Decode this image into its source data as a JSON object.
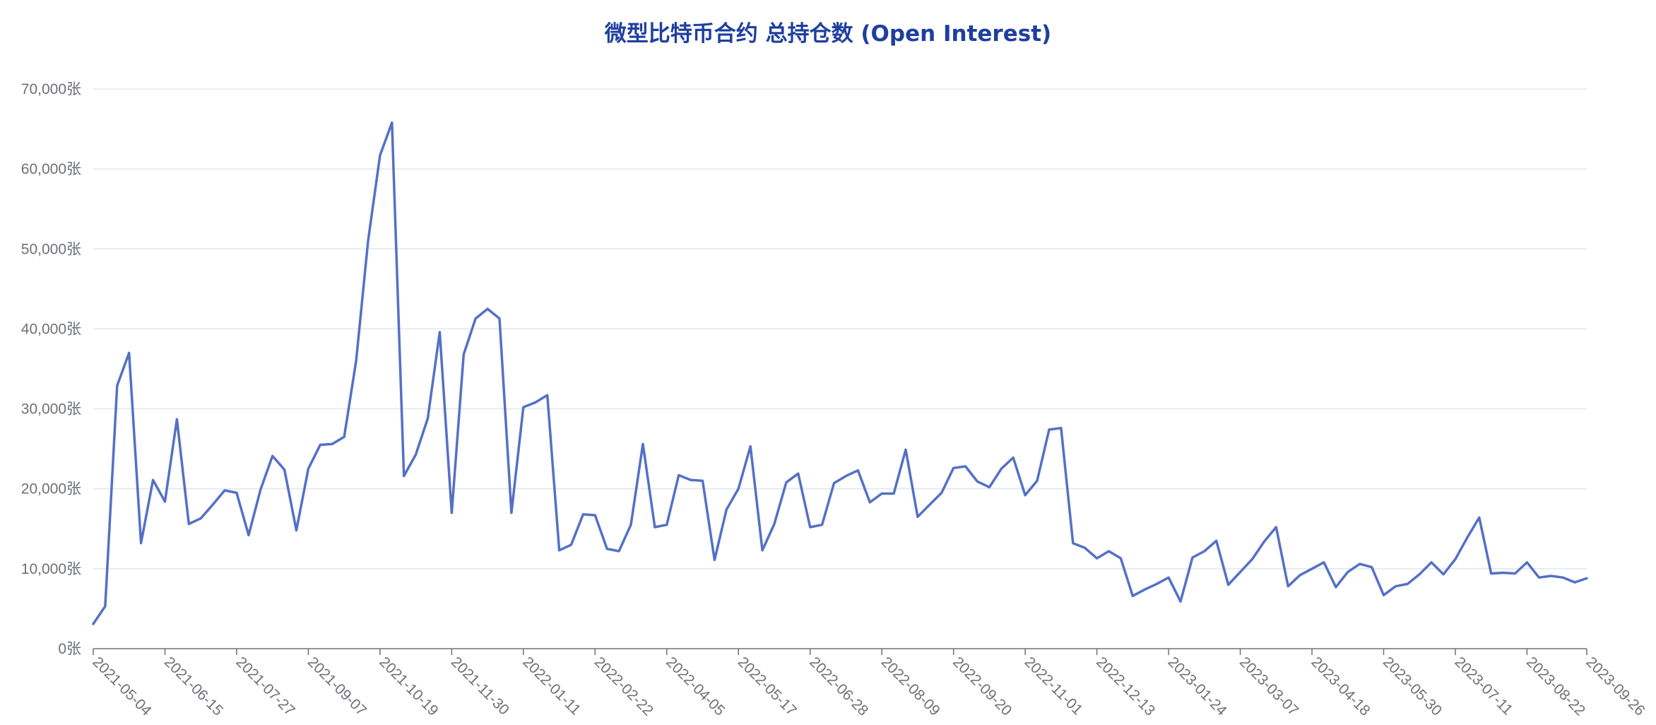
{
  "chart_data": {
    "type": "line",
    "title": "微型比特币合约 总持仓数 (Open Interest)",
    "xlabel": "",
    "ylabel": "",
    "ylim": [
      0,
      70000
    ],
    "grid": true,
    "legend": "none",
    "y_unit_suffix": "张",
    "y_ticks": [
      "0张",
      "10,000张",
      "20,000张",
      "30,000张",
      "40,000张",
      "50,000张",
      "60,000张",
      "70,000张"
    ],
    "x_ticks": [
      "2021-05-04",
      "2021-06-15",
      "2021-07-27",
      "2021-09-07",
      "2021-10-19",
      "2021-11-30",
      "2022-01-11",
      "2022-02-22",
      "2022-04-05",
      "2022-05-17",
      "2022-06-28",
      "2022-08-09",
      "2022-09-20",
      "2022-11-01",
      "2022-12-13",
      "2023-01-24",
      "2023-03-07",
      "2023-04-18",
      "2023-05-30",
      "2023-07-11",
      "2023-08-22",
      "2023-09-26"
    ],
    "series": [
      {
        "color": "#5470c6",
        "points": [
          [
            "2021-05-04",
            3100
          ],
          [
            "2021-05-11",
            5300
          ],
          [
            "2021-05-18",
            32900
          ],
          [
            "2021-05-25",
            37000
          ],
          [
            "2021-06-01",
            13200
          ],
          [
            "2021-06-08",
            21100
          ],
          [
            "2021-06-15",
            18400
          ],
          [
            "2021-06-22",
            28700
          ],
          [
            "2021-06-29",
            15600
          ],
          [
            "2021-07-06",
            16300
          ],
          [
            "2021-07-13",
            18000
          ],
          [
            "2021-07-20",
            19800
          ],
          [
            "2021-07-27",
            19500
          ],
          [
            "2021-08-03",
            14200
          ],
          [
            "2021-08-10",
            19900
          ],
          [
            "2021-08-17",
            24100
          ],
          [
            "2021-08-24",
            22400
          ],
          [
            "2021-08-31",
            14800
          ],
          [
            "2021-09-07",
            22500
          ],
          [
            "2021-09-14",
            25500
          ],
          [
            "2021-09-21",
            25600
          ],
          [
            "2021-09-28",
            26500
          ],
          [
            "2021-10-05",
            36000
          ],
          [
            "2021-10-12",
            51000
          ],
          [
            "2021-10-19",
            61700
          ],
          [
            "2021-10-26",
            65800
          ],
          [
            "2021-11-02",
            21600
          ],
          [
            "2021-11-09",
            24300
          ],
          [
            "2021-11-16",
            28800
          ],
          [
            "2021-11-23",
            39600
          ],
          [
            "2021-11-30",
            17000
          ],
          [
            "2021-12-07",
            36800
          ],
          [
            "2021-12-14",
            41300
          ],
          [
            "2021-12-21",
            42500
          ],
          [
            "2021-12-28",
            41300
          ],
          [
            "2022-01-04",
            17000
          ],
          [
            "2022-01-11",
            30200
          ],
          [
            "2022-01-18",
            30800
          ],
          [
            "2022-01-25",
            31700
          ],
          [
            "2022-02-01",
            12300
          ],
          [
            "2022-02-08",
            13000
          ],
          [
            "2022-02-15",
            16800
          ],
          [
            "2022-02-22",
            16700
          ],
          [
            "2022-03-01",
            12500
          ],
          [
            "2022-03-08",
            12200
          ],
          [
            "2022-03-15",
            15500
          ],
          [
            "2022-03-22",
            25600
          ],
          [
            "2022-03-29",
            15200
          ],
          [
            "2022-04-05",
            15500
          ],
          [
            "2022-04-12",
            21700
          ],
          [
            "2022-04-19",
            21100
          ],
          [
            "2022-04-26",
            21000
          ],
          [
            "2022-05-03",
            11100
          ],
          [
            "2022-05-10",
            17400
          ],
          [
            "2022-05-17",
            20000
          ],
          [
            "2022-05-24",
            25300
          ],
          [
            "2022-05-31",
            12300
          ],
          [
            "2022-06-07",
            15600
          ],
          [
            "2022-06-14",
            20800
          ],
          [
            "2022-06-21",
            21900
          ],
          [
            "2022-06-28",
            15200
          ],
          [
            "2022-07-05",
            15500
          ],
          [
            "2022-07-12",
            20700
          ],
          [
            "2022-07-19",
            21600
          ],
          [
            "2022-07-26",
            22300
          ],
          [
            "2022-08-02",
            18300
          ],
          [
            "2022-08-09",
            19400
          ],
          [
            "2022-08-16",
            19400
          ],
          [
            "2022-08-23",
            24900
          ],
          [
            "2022-08-30",
            16500
          ],
          [
            "2022-09-06",
            18000
          ],
          [
            "2022-09-13",
            19500
          ],
          [
            "2022-09-20",
            22600
          ],
          [
            "2022-09-27",
            22800
          ],
          [
            "2022-10-04",
            20900
          ],
          [
            "2022-10-11",
            20200
          ],
          [
            "2022-10-18",
            22500
          ],
          [
            "2022-10-25",
            23900
          ],
          [
            "2022-11-01",
            19200
          ],
          [
            "2022-11-08",
            21000
          ],
          [
            "2022-11-15",
            27400
          ],
          [
            "2022-11-22",
            27600
          ],
          [
            "2022-11-29",
            13200
          ],
          [
            "2022-12-06",
            12600
          ],
          [
            "2022-12-13",
            11300
          ],
          [
            "2022-12-20",
            12200
          ],
          [
            "2022-12-27",
            11300
          ],
          [
            "2023-01-03",
            6600
          ],
          [
            "2023-01-10",
            7400
          ],
          [
            "2023-01-17",
            8100
          ],
          [
            "2023-01-24",
            8900
          ],
          [
            "2023-01-31",
            5900
          ],
          [
            "2023-02-07",
            11400
          ],
          [
            "2023-02-14",
            12200
          ],
          [
            "2023-02-21",
            13500
          ],
          [
            "2023-02-28",
            8000
          ],
          [
            "2023-03-07",
            9600
          ],
          [
            "2023-03-14",
            11200
          ],
          [
            "2023-03-21",
            13400
          ],
          [
            "2023-03-28",
            15200
          ],
          [
            "2023-04-04",
            7800
          ],
          [
            "2023-04-11",
            9200
          ],
          [
            "2023-04-18",
            10000
          ],
          [
            "2023-04-25",
            10800
          ],
          [
            "2023-05-02",
            7700
          ],
          [
            "2023-05-09",
            9600
          ],
          [
            "2023-05-16",
            10600
          ],
          [
            "2023-05-23",
            10200
          ],
          [
            "2023-05-30",
            6700
          ],
          [
            "2023-06-06",
            7800
          ],
          [
            "2023-06-13",
            8100
          ],
          [
            "2023-06-20",
            9300
          ],
          [
            "2023-06-27",
            10800
          ],
          [
            "2023-07-04",
            9300
          ],
          [
            "2023-07-11",
            11200
          ],
          [
            "2023-07-18",
            13900
          ],
          [
            "2023-07-25",
            16400
          ],
          [
            "2023-08-01",
            9400
          ],
          [
            "2023-08-08",
            9500
          ],
          [
            "2023-08-15",
            9400
          ],
          [
            "2023-08-22",
            10800
          ],
          [
            "2023-08-29",
            8900
          ],
          [
            "2023-09-05",
            9100
          ],
          [
            "2023-09-12",
            8900
          ],
          [
            "2023-09-19",
            8300
          ],
          [
            "2023-09-26",
            8800
          ]
        ]
      }
    ]
  }
}
